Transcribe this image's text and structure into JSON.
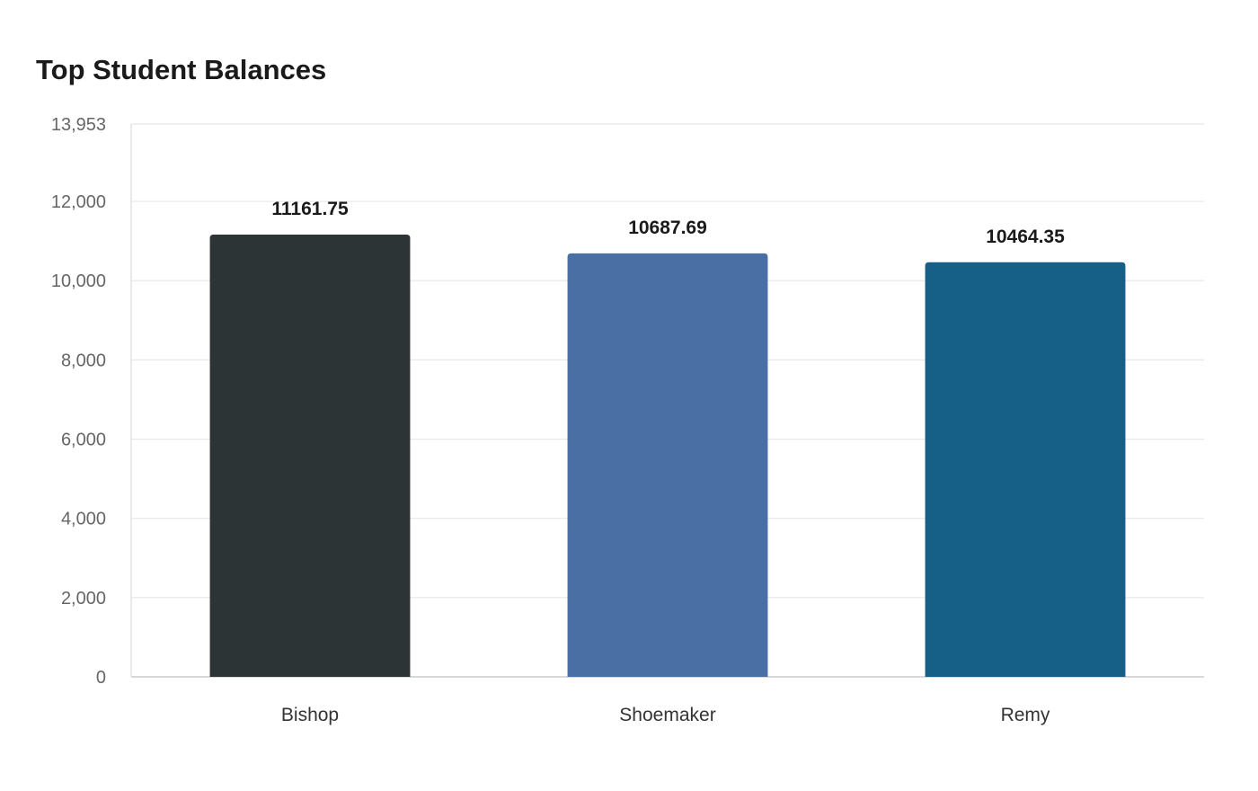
{
  "chart_data": {
    "type": "bar",
    "title": "Top Student Balances",
    "xlabel": "",
    "ylabel": "",
    "categories": [
      "Bishop",
      "Shoemaker",
      "Remy"
    ],
    "values": [
      11161.75,
      10687.69,
      10464.35
    ],
    "value_labels": [
      "11161.75",
      "10687.69",
      "10464.35"
    ],
    "colors": [
      "#2d3436",
      "#4a6fa5",
      "#166088"
    ],
    "ylim": [
      0,
      13953
    ],
    "yticks": [
      0,
      2000,
      4000,
      6000,
      8000,
      10000,
      12000,
      13953
    ],
    "ytick_labels": [
      "0",
      "2,000",
      "4,000",
      "6,000",
      "8,000",
      "10,000",
      "12,000",
      "13,953"
    ],
    "grid": true,
    "legend": "none"
  }
}
